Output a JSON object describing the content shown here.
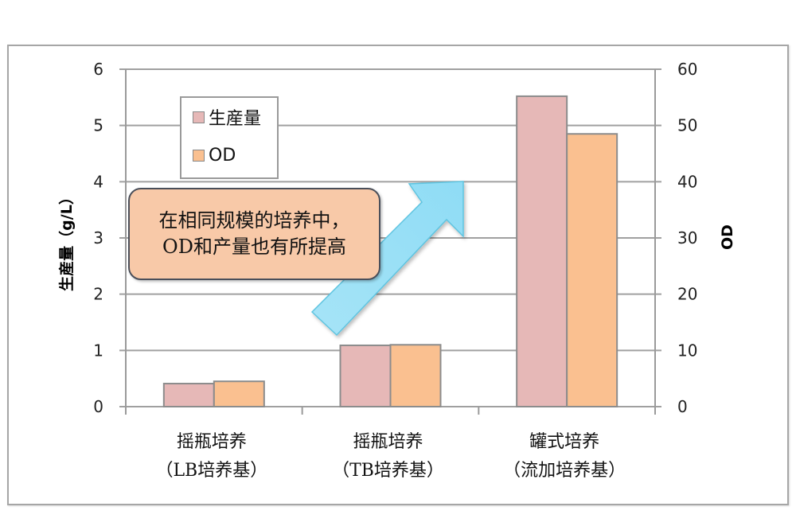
{
  "chart_data": {
    "type": "bar",
    "title": "",
    "categories": [
      "摇瓶培养\n（LB培养基）",
      "摇瓶培养\n（TB培养基）",
      "罐式培养\n（流加培养基）"
    ],
    "category_lines": [
      [
        "摇瓶培养",
        "（LB培养基）"
      ],
      [
        "摇瓶培养",
        "（TB培养基）"
      ],
      [
        "罐式培养",
        "（流加培养基）"
      ]
    ],
    "series": [
      {
        "name": "生産量",
        "axis": "left",
        "color": "#e6b8b7",
        "values": [
          0.41,
          1.09,
          5.52
        ]
      },
      {
        "name": "OD",
        "axis": "right",
        "color": "#fac090",
        "values": [
          4.5,
          11.0,
          48.5
        ]
      }
    ],
    "ylabel": "生産量（g/L）",
    "y2label": "OD",
    "xlabel": "",
    "ylim": [
      0,
      6
    ],
    "y2lim": [
      0,
      60
    ],
    "yticks": [
      "0",
      "1",
      "2",
      "3",
      "4",
      "5",
      "6"
    ],
    "y2ticks": [
      "0",
      "10",
      "20",
      "30",
      "40",
      "50",
      "60"
    ],
    "grid": true,
    "legend_position": "upper-left-inside",
    "annotations": [
      {
        "type": "callout",
        "text": "在相同规模的培养中，OD和产量也有所提高"
      },
      {
        "type": "arrow",
        "direction": "up-right",
        "color": "#9ee2f7"
      }
    ]
  },
  "legend": {
    "items": [
      {
        "label": "生産量",
        "color": "#e6b8b7"
      },
      {
        "label": "OD",
        "color": "#fac090"
      }
    ]
  },
  "callout": {
    "text": "在相同规模的培养中，OD和产量也有所提高"
  }
}
